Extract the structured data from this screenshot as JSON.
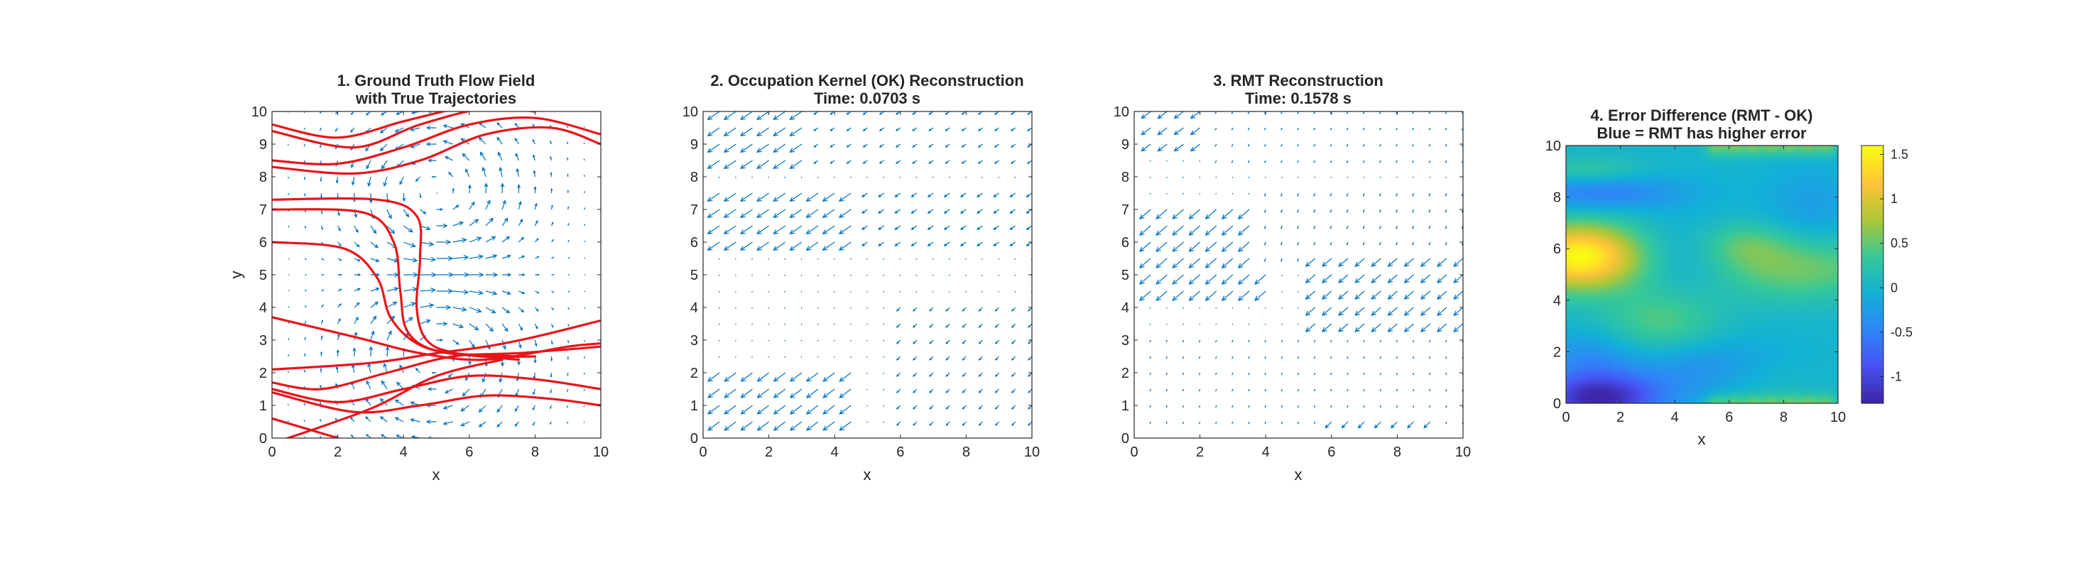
{
  "chart_data": [
    {
      "type": "quiver",
      "title_line1": "1. Ground Truth Flow Field",
      "title_line2": "with True Trajectories",
      "xlabel": "x",
      "ylabel": "y",
      "xlim": [
        0,
        10
      ],
      "ylim": [
        0,
        10
      ],
      "xticks": [
        "0",
        "2",
        "4",
        "6",
        "8",
        "10"
      ],
      "yticks": [
        "0",
        "1",
        "2",
        "3",
        "4",
        "5",
        "6",
        "7",
        "8",
        "9",
        "10"
      ],
      "grid": false,
      "colors": {
        "arrows": "#0072BD",
        "trajectories": "#E8141B"
      },
      "vortices": [
        {
          "x": 5,
          "y": 7.5,
          "strength": 1
        },
        {
          "x": 5,
          "y": 2.5,
          "strength": -1
        }
      ],
      "trajectories": [
        [
          [
            0,
            9.6
          ],
          [
            2,
            9.2
          ],
          [
            4,
            9.7
          ],
          [
            6,
            10.2
          ]
        ],
        [
          [
            0,
            9.4
          ],
          [
            2.5,
            8.9
          ],
          [
            4.5,
            9.6
          ],
          [
            6.5,
            10.1
          ],
          [
            8,
            10
          ]
        ],
        [
          [
            0,
            8.5
          ],
          [
            2,
            8.4
          ],
          [
            4,
            8.9
          ],
          [
            6,
            9.6
          ],
          [
            8,
            9.8
          ],
          [
            10,
            9.3
          ]
        ],
        [
          [
            0,
            8.3
          ],
          [
            2.5,
            8.1
          ],
          [
            4.5,
            8.5
          ],
          [
            6.5,
            9.3
          ],
          [
            8.5,
            9.5
          ],
          [
            10,
            9.0
          ]
        ],
        [
          [
            0,
            7.3
          ],
          [
            3.2,
            7.3
          ],
          [
            4.4,
            6.8
          ],
          [
            4.5,
            5.5
          ],
          [
            4.4,
            4.0
          ],
          [
            4.7,
            3.0
          ],
          [
            5.6,
            2.6
          ],
          [
            7.5,
            2.4
          ]
        ],
        [
          [
            0,
            7.0
          ],
          [
            2.8,
            6.9
          ],
          [
            3.7,
            6.0
          ],
          [
            3.9,
            4.5
          ],
          [
            4.1,
            3.3
          ],
          [
            4.9,
            2.7
          ],
          [
            6.5,
            2.5
          ],
          [
            8,
            2.5
          ]
        ],
        [
          [
            0,
            6.0
          ],
          [
            2.2,
            5.8
          ],
          [
            3.2,
            4.9
          ],
          [
            3.6,
            3.7
          ],
          [
            4.4,
            2.9
          ],
          [
            5.5,
            2.6
          ],
          [
            7.5,
            2.5
          ]
        ],
        [
          [
            0,
            3.7
          ],
          [
            2.5,
            3.1
          ],
          [
            4.5,
            2.6
          ],
          [
            6.5,
            2.4
          ],
          [
            9,
            2.8
          ],
          [
            10,
            2.9
          ]
        ],
        [
          [
            0,
            2.1
          ],
          [
            3,
            2.3
          ],
          [
            5,
            2.6
          ],
          [
            6.5,
            2.8
          ],
          [
            8,
            3.1
          ],
          [
            10,
            3.6
          ]
        ],
        [
          [
            0,
            1.7
          ],
          [
            1.5,
            1.5
          ],
          [
            3.5,
            2.0
          ],
          [
            5.5,
            2.5
          ],
          [
            7.5,
            2.6
          ],
          [
            10,
            2.8
          ]
        ],
        [
          [
            0,
            1.5
          ],
          [
            2,
            1.1
          ],
          [
            4,
            1.5
          ],
          [
            6,
            1.9
          ],
          [
            8,
            1.8
          ],
          [
            10,
            1.5
          ]
        ],
        [
          [
            0,
            1.4
          ],
          [
            2.5,
            0.8
          ],
          [
            4.5,
            1.0
          ],
          [
            6.5,
            1.3
          ],
          [
            8.5,
            1.2
          ],
          [
            10,
            1.0
          ]
        ],
        [
          [
            0,
            0.6
          ],
          [
            2,
            0.0
          ]
        ],
        [
          [
            0.2,
            -0.1
          ],
          [
            3,
            0.9
          ],
          [
            5,
            1.9
          ],
          [
            7,
            2.4
          ]
        ]
      ]
    },
    {
      "type": "quiver",
      "title_line1": "2. Occupation Kernel (OK) Reconstruction",
      "title_line2": "Time: 0.0703 s",
      "xlabel": "x",
      "ylabel": "",
      "xlim": [
        0,
        10
      ],
      "ylim": [
        0,
        10
      ],
      "xticks": [
        "0",
        "2",
        "4",
        "6",
        "8",
        "10"
      ],
      "yticks": [
        "0",
        "1",
        "2",
        "3",
        "4",
        "5",
        "6",
        "7",
        "8",
        "9",
        "10"
      ],
      "grid": false,
      "colors": {
        "arrows": "#0072BD"
      },
      "regions": [
        {
          "x0": 0,
          "x1": 3.2,
          "y0": 8.5,
          "y1": 10,
          "u": -0.8,
          "v": -0.55,
          "mag": 1.0
        },
        {
          "x0": 3.2,
          "x1": 10,
          "y0": 8.5,
          "y1": 10,
          "u": -0.8,
          "v": -0.55,
          "mag": 0.35
        },
        {
          "x0": 0,
          "x1": 5,
          "y0": 5.8,
          "y1": 7.6,
          "u": -0.8,
          "v": -0.55,
          "mag": 1.0
        },
        {
          "x0": 5,
          "x1": 10,
          "y0": 5.8,
          "y1": 7.6,
          "u": -0.8,
          "v": -0.55,
          "mag": 0.45
        },
        {
          "x0": 0,
          "x1": 4.5,
          "y0": 0,
          "y1": 2.3,
          "u": -0.8,
          "v": -0.6,
          "mag": 1.0
        },
        {
          "x0": 6,
          "x1": 10,
          "y0": 0.5,
          "y1": 4,
          "u": -0.6,
          "v": -0.6,
          "mag": 0.35
        }
      ]
    },
    {
      "type": "quiver",
      "title_line1": "3. RMT Reconstruction",
      "title_line2": "Time: 0.1578 s",
      "xlabel": "x",
      "ylabel": "",
      "xlim": [
        0,
        10
      ],
      "ylim": [
        0,
        10
      ],
      "xticks": [
        "0",
        "2",
        "4",
        "6",
        "8",
        "10"
      ],
      "yticks": [
        "0",
        "1",
        "2",
        "3",
        "4",
        "5",
        "6",
        "7",
        "8",
        "9",
        "10"
      ],
      "grid": false,
      "colors": {
        "arrows": "#0072BD"
      },
      "regions": [
        {
          "x0": 0,
          "x1": 2.2,
          "y0": 8.8,
          "y1": 10,
          "u": -0.8,
          "v": -0.6,
          "mag": 0.8
        },
        {
          "x0": 2.2,
          "x1": 10,
          "y0": 8.5,
          "y1": 10,
          "u": -0.4,
          "v": -0.8,
          "mag": 0.15
        },
        {
          "x0": 0,
          "x1": 4,
          "y0": 4.2,
          "y1": 7.2,
          "u": -0.75,
          "v": -0.65,
          "mag": 1.0
        },
        {
          "x0": 4,
          "x1": 10,
          "y0": 5.5,
          "y1": 7.6,
          "u": -0.3,
          "v": -0.8,
          "mag": 0.2
        },
        {
          "x0": 5.5,
          "x1": 10,
          "y0": 3.0,
          "y1": 5.8,
          "u": -0.75,
          "v": -0.65,
          "mag": 0.85
        },
        {
          "x0": 0,
          "x1": 10,
          "y0": 0,
          "y1": 3.0,
          "u": -0.3,
          "v": -0.9,
          "mag": 0.12
        },
        {
          "x0": 6,
          "x1": 9.2,
          "y0": 0,
          "y1": 0.8,
          "u": -0.7,
          "v": -0.7,
          "mag": 0.6
        }
      ]
    },
    {
      "type": "heatmap",
      "title_line1": "4. Error Difference (RMT - OK)",
      "title_line2": "Blue = RMT has higher error",
      "xlabel": "x",
      "ylabel": "",
      "xlim": [
        0,
        10
      ],
      "ylim": [
        0,
        10
      ],
      "xticks": [
        "0",
        "2",
        "4",
        "6",
        "8",
        "10"
      ],
      "yticks": [
        "0",
        "2",
        "4",
        "6",
        "8",
        "10"
      ],
      "colorbar": {
        "range": [
          -1.3,
          1.6
        ],
        "ticks": [
          "-1",
          "-0.5",
          "0",
          "0.5",
          "1",
          "1.5"
        ],
        "colormap": "parula"
      },
      "base_value": 0.0,
      "features": [
        {
          "x": 0.5,
          "y": 5.7,
          "sx": 1.6,
          "sy": 0.9,
          "amp": 1.6
        },
        {
          "x": 8.5,
          "y": 5.3,
          "sx": 2.3,
          "sy": 0.9,
          "amp": 0.6
        },
        {
          "x": 6.5,
          "y": 6.2,
          "sx": 1.2,
          "sy": 0.6,
          "amp": 0.35
        },
        {
          "x": 3.5,
          "y": 3.2,
          "sx": 1.5,
          "sy": 0.9,
          "amp": 0.45
        },
        {
          "x": 1.2,
          "y": 8.2,
          "sx": 2.2,
          "sy": 0.5,
          "amp": -0.55
        },
        {
          "x": 0.8,
          "y": 9.0,
          "sx": 1.5,
          "sy": 0.4,
          "amp": 0.35
        },
        {
          "x": 1.2,
          "y": 0.2,
          "sx": 1.6,
          "sy": 0.7,
          "amp": -1.3
        },
        {
          "x": 0.8,
          "y": 1.8,
          "sx": 1.2,
          "sy": 0.7,
          "amp": -0.35
        },
        {
          "x": 5.5,
          "y": 1.3,
          "sx": 2.0,
          "sy": 0.8,
          "amp": -0.45
        },
        {
          "x": 9.0,
          "y": 7.5,
          "sx": 1.2,
          "sy": 1.2,
          "amp": -0.25
        },
        {
          "x": 4.5,
          "y": 5.6,
          "sx": 1.2,
          "sy": 1.0,
          "amp": -0.2
        },
        {
          "x": 7.0,
          "y": 1.0,
          "sx": 1.5,
          "sy": 0.7,
          "amp": 0.25
        }
      ],
      "edge_beads": {
        "top": 0.55,
        "bottom": 0.5,
        "from_x": 5.5,
        "to_x": 9.6,
        "count": 7
      }
    }
  ]
}
